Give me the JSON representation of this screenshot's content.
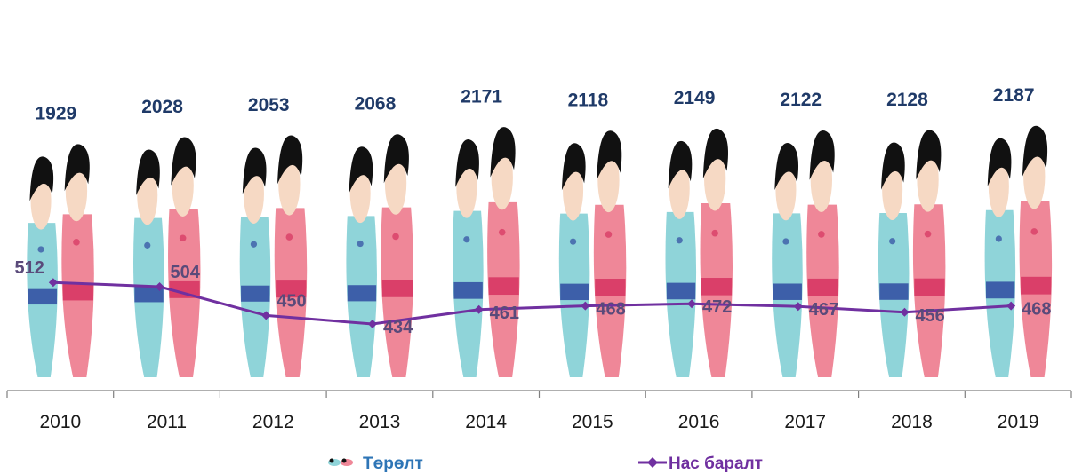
{
  "chart_data": {
    "type": "bar",
    "categories": [
      "2010",
      "2011",
      "2012",
      "2013",
      "2014",
      "2015",
      "2016",
      "2017",
      "2018",
      "2019"
    ],
    "series": [
      {
        "name": "Төрөлт",
        "kind": "pictogram-bar",
        "values": [
          1929,
          2028,
          2053,
          2068,
          2171,
          2118,
          2149,
          2122,
          2128,
          2187
        ]
      },
      {
        "name": "Нас баралт",
        "kind": "line",
        "values": [
          512,
          504,
          450,
          434,
          461,
          468,
          472,
          467,
          456,
          468
        ]
      }
    ],
    "legend": "bottom",
    "grid": false,
    "colors": {
      "births_label": "#1f3a68",
      "line": "#7030a0",
      "death_label": "#5a4a7a",
      "boy": "#8fd4d9",
      "girl": "#ef8798",
      "hair": "#111111",
      "skin": "#f6d9c4"
    }
  }
}
